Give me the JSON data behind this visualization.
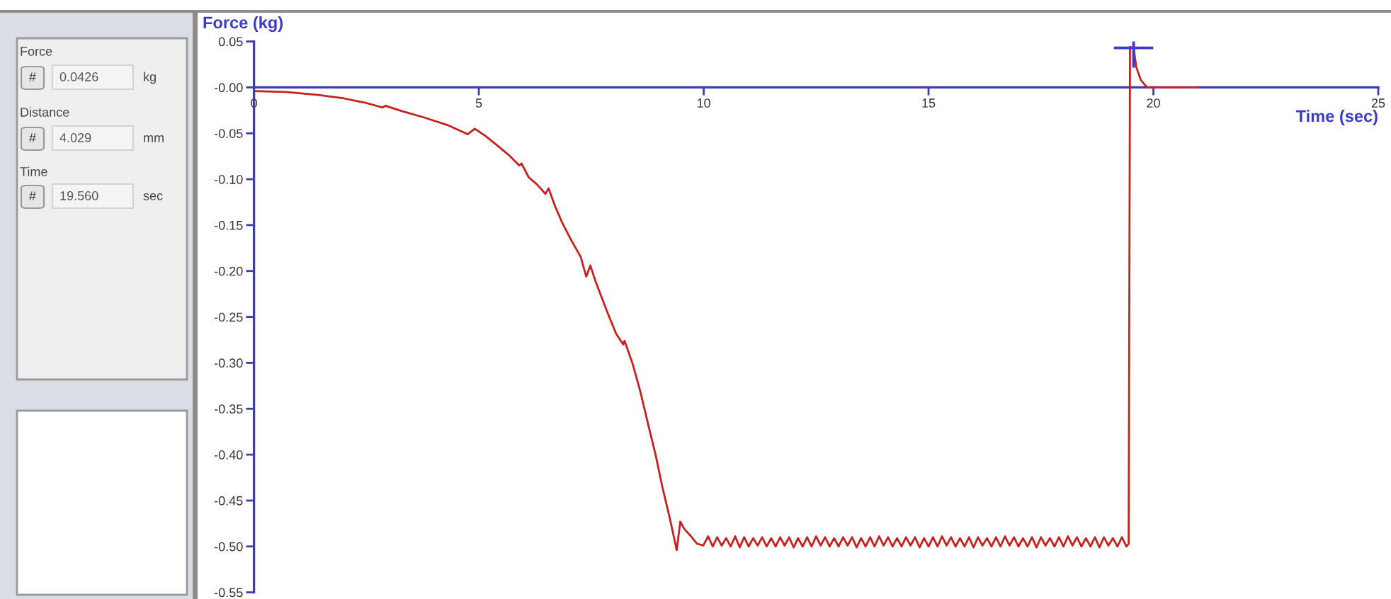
{
  "chart_data": {
    "type": "line",
    "ylabel": "Force (kg)",
    "xlabel": "Time (sec)",
    "x": [
      0,
      0.7,
      1.4,
      2.0,
      2.5,
      2.86,
      2.92,
      3.3,
      3.8,
      4.3,
      4.75,
      4.91,
      5.15,
      5.38,
      5.65,
      5.9,
      5.95,
      6.11,
      6.3,
      6.48,
      6.55,
      6.7,
      6.85,
      7.05,
      7.27,
      7.33,
      7.39,
      7.48,
      7.6,
      7.85,
      8.05,
      8.21,
      8.24,
      8.42,
      8.6,
      8.77,
      8.93,
      9.08,
      9.25,
      9.4,
      9.48,
      9.57,
      9.7,
      9.85,
      9.99,
      10.1,
      10.2,
      10.3,
      10.4,
      10.5,
      10.6,
      10.7,
      10.8,
      10.9,
      11.0,
      11.1,
      11.2,
      11.3,
      11.4,
      11.5,
      11.6,
      11.7,
      11.8,
      11.9,
      12.0,
      12.1,
      12.2,
      12.3,
      12.4,
      12.5,
      12.6,
      12.7,
      12.8,
      12.9,
      13.0,
      13.1,
      13.2,
      13.3,
      13.4,
      13.5,
      13.6,
      13.7,
      13.8,
      13.9,
      14.0,
      14.1,
      14.2,
      14.3,
      14.4,
      14.5,
      14.6,
      14.7,
      14.8,
      14.9,
      15.0,
      15.1,
      15.2,
      15.3,
      15.4,
      15.5,
      15.6,
      15.7,
      15.8,
      15.9,
      16.0,
      16.1,
      16.2,
      16.3,
      16.4,
      16.5,
      16.6,
      16.7,
      16.8,
      16.9,
      17.0,
      17.1,
      17.2,
      17.3,
      17.4,
      17.5,
      17.6,
      17.7,
      17.8,
      17.9,
      18.0,
      18.1,
      18.2,
      18.3,
      18.4,
      18.5,
      18.6,
      18.7,
      18.8,
      18.9,
      19.0,
      19.1,
      19.2,
      19.3,
      19.4,
      19.45,
      19.48,
      19.56,
      19.62,
      19.72,
      19.86,
      20.97
    ],
    "series": [
      {
        "color": "#c8201e",
        "marker": "none",
        "line_style": "solid",
        "values": [
          -0.004,
          -0.005,
          -0.008,
          -0.012,
          -0.017,
          -0.022,
          -0.02,
          -0.026,
          -0.033,
          -0.041,
          -0.051,
          -0.045,
          -0.053,
          -0.062,
          -0.073,
          -0.085,
          -0.083,
          -0.098,
          -0.106,
          -0.116,
          -0.11,
          -0.13,
          -0.147,
          -0.166,
          -0.185,
          -0.196,
          -0.206,
          -0.194,
          -0.212,
          -0.244,
          -0.268,
          -0.28,
          -0.276,
          -0.301,
          -0.333,
          -0.368,
          -0.4,
          -0.435,
          -0.47,
          -0.504,
          -0.473,
          -0.481,
          -0.488,
          -0.497,
          -0.499,
          -0.489,
          -0.5,
          -0.49,
          -0.499,
          -0.491,
          -0.5,
          -0.489,
          -0.501,
          -0.49,
          -0.5,
          -0.491,
          -0.499,
          -0.49,
          -0.5,
          -0.491,
          -0.5,
          -0.49,
          -0.499,
          -0.49,
          -0.501,
          -0.491,
          -0.5,
          -0.49,
          -0.5,
          -0.489,
          -0.499,
          -0.49,
          -0.5,
          -0.491,
          -0.5,
          -0.49,
          -0.499,
          -0.49,
          -0.501,
          -0.491,
          -0.5,
          -0.49,
          -0.5,
          -0.489,
          -0.499,
          -0.49,
          -0.5,
          -0.491,
          -0.5,
          -0.49,
          -0.499,
          -0.49,
          -0.501,
          -0.491,
          -0.5,
          -0.49,
          -0.5,
          -0.489,
          -0.499,
          -0.49,
          -0.5,
          -0.491,
          -0.5,
          -0.49,
          -0.501,
          -0.49,
          -0.499,
          -0.491,
          -0.5,
          -0.49,
          -0.5,
          -0.489,
          -0.499,
          -0.49,
          -0.5,
          -0.491,
          -0.5,
          -0.49,
          -0.501,
          -0.49,
          -0.499,
          -0.491,
          -0.5,
          -0.49,
          -0.5,
          -0.489,
          -0.499,
          -0.49,
          -0.5,
          -0.491,
          -0.5,
          -0.49,
          -0.501,
          -0.49,
          -0.499,
          -0.491,
          -0.5,
          -0.49,
          -0.5,
          -0.497,
          0.044,
          0.043,
          0.022,
          0.008,
          0.0,
          0.0
        ]
      },
      {
        "type": "scatter",
        "color": "#3a3ad0",
        "marker": "cross",
        "x": [
          19.56
        ],
        "values": [
          0.043
        ]
      }
    ],
    "xlim": [
      0,
      25
    ],
    "ylim": [
      -0.55,
      0.05
    ],
    "xticks": [
      0,
      5,
      10,
      15,
      20,
      25
    ],
    "yticks": [
      {
        "value": 0.05,
        "label": "0.05"
      },
      {
        "value": 0,
        "label": "-0.00"
      },
      {
        "value": -0.05,
        "label": "-0.05"
      },
      {
        "value": -0.1,
        "label": "-0.10"
      },
      {
        "value": -0.15,
        "label": "-0.15"
      },
      {
        "value": -0.2,
        "label": "-0.20"
      },
      {
        "value": -0.25,
        "label": "-0.25"
      },
      {
        "value": -0.3,
        "label": "-0.30"
      },
      {
        "value": -0.35,
        "label": "-0.35"
      },
      {
        "value": -0.4,
        "label": "-0.40"
      },
      {
        "value": -0.45,
        "label": "-0.45"
      },
      {
        "value": -0.5,
        "label": "-0.50"
      },
      {
        "value": -0.55,
        "label": "-0.55"
      }
    ],
    "annotations": [
      "Force",
      "#",
      "0.0426",
      "kg",
      "Distance",
      "#",
      "4.029",
      "mm",
      "Time",
      "#",
      "19.560",
      "sec"
    ]
  }
}
